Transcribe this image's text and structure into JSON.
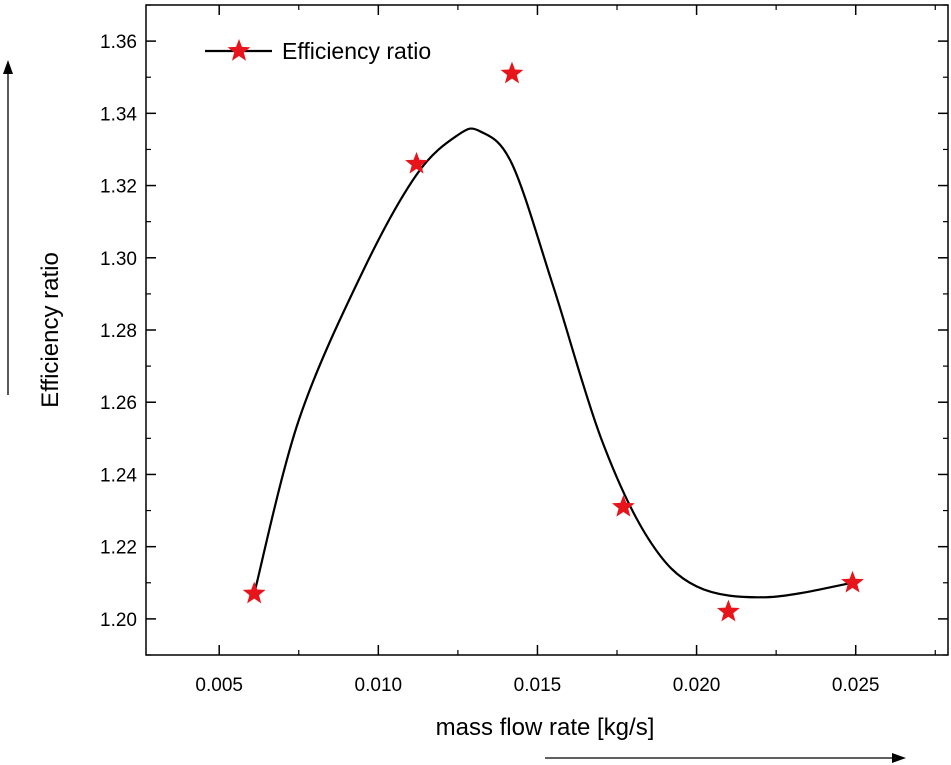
{
  "chart_data": {
    "type": "scatter",
    "title": "",
    "xlabel": "mass flow rate [kg/s]",
    "ylabel": "Efficiency ratio",
    "xlim": [
      0.0027,
      0.0279
    ],
    "ylim": [
      1.19,
      1.37
    ],
    "x_ticks": [
      "0.005",
      "0.010",
      "0.015",
      "0.020",
      "0.025"
    ],
    "y_ticks": [
      "1.20",
      "1.22",
      "1.24",
      "1.26",
      "1.28",
      "1.30",
      "1.32",
      "1.34",
      "1.36"
    ],
    "grid": false,
    "legend_position": "top-left",
    "series": [
      {
        "name": "Efficiency ratio",
        "marker": "star",
        "marker_color": "#e8141b",
        "line_color": "#000000",
        "x": [
          0.0061,
          0.0112,
          0.0142,
          0.0177,
          0.021,
          0.0249
        ],
        "y": [
          1.207,
          1.326,
          1.351,
          1.231,
          1.202,
          1.21
        ]
      }
    ],
    "fit_curve": {
      "line_color": "#000000",
      "x": [
        0.0061,
        0.0075,
        0.0095,
        0.0112,
        0.0125,
        0.0132,
        0.0142,
        0.0155,
        0.017,
        0.0185,
        0.02,
        0.0222,
        0.0249
      ],
      "y": [
        1.207,
        1.255,
        1.296,
        1.323,
        1.334,
        1.335,
        1.326,
        1.292,
        1.25,
        1.222,
        1.209,
        1.206,
        1.21
      ]
    }
  }
}
